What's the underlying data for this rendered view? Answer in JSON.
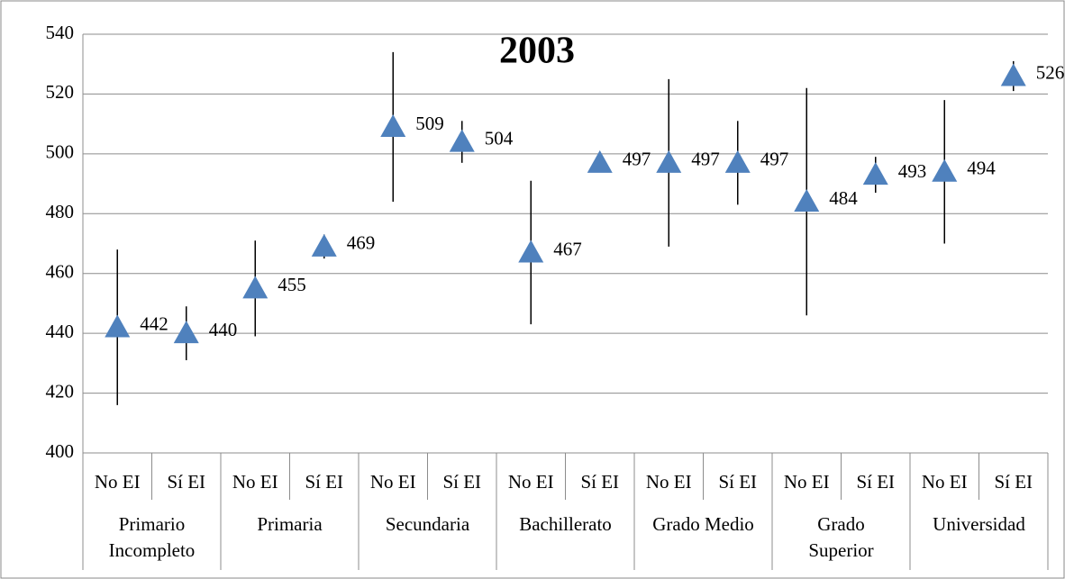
{
  "chart_data": {
    "type": "errorbar",
    "title": "2003",
    "categories": [
      "No EI",
      "Sí EI",
      "No EI",
      "Sí EI",
      "No EI",
      "Sí EI",
      "No EI",
      "Sí EI",
      "No EI",
      "Sí EI",
      "No EI",
      "Sí EI",
      "No EI",
      "Sí EI"
    ],
    "groups": [
      [
        "Primario",
        "Incompleto"
      ],
      [
        "Primaria"
      ],
      [
        "Secundaria"
      ],
      [
        "Bachillerato"
      ],
      [
        "Grado Medio"
      ],
      [
        "Grado",
        "Superior"
      ],
      [
        "Universidad"
      ]
    ],
    "series": [
      {
        "color": "#4f81bd",
        "values": [
          442,
          440,
          455,
          469,
          509,
          504,
          467,
          497,
          497,
          497,
          484,
          493,
          494,
          526
        ],
        "errors": [
          26,
          9,
          16,
          4,
          25,
          7,
          24,
          2,
          28,
          14,
          38,
          6,
          24,
          5
        ]
      }
    ],
    "ylim": [
      400,
      540
    ],
    "yticks": [
      400,
      420,
      440,
      460,
      480,
      500,
      520,
      540
    ],
    "grid": true
  }
}
